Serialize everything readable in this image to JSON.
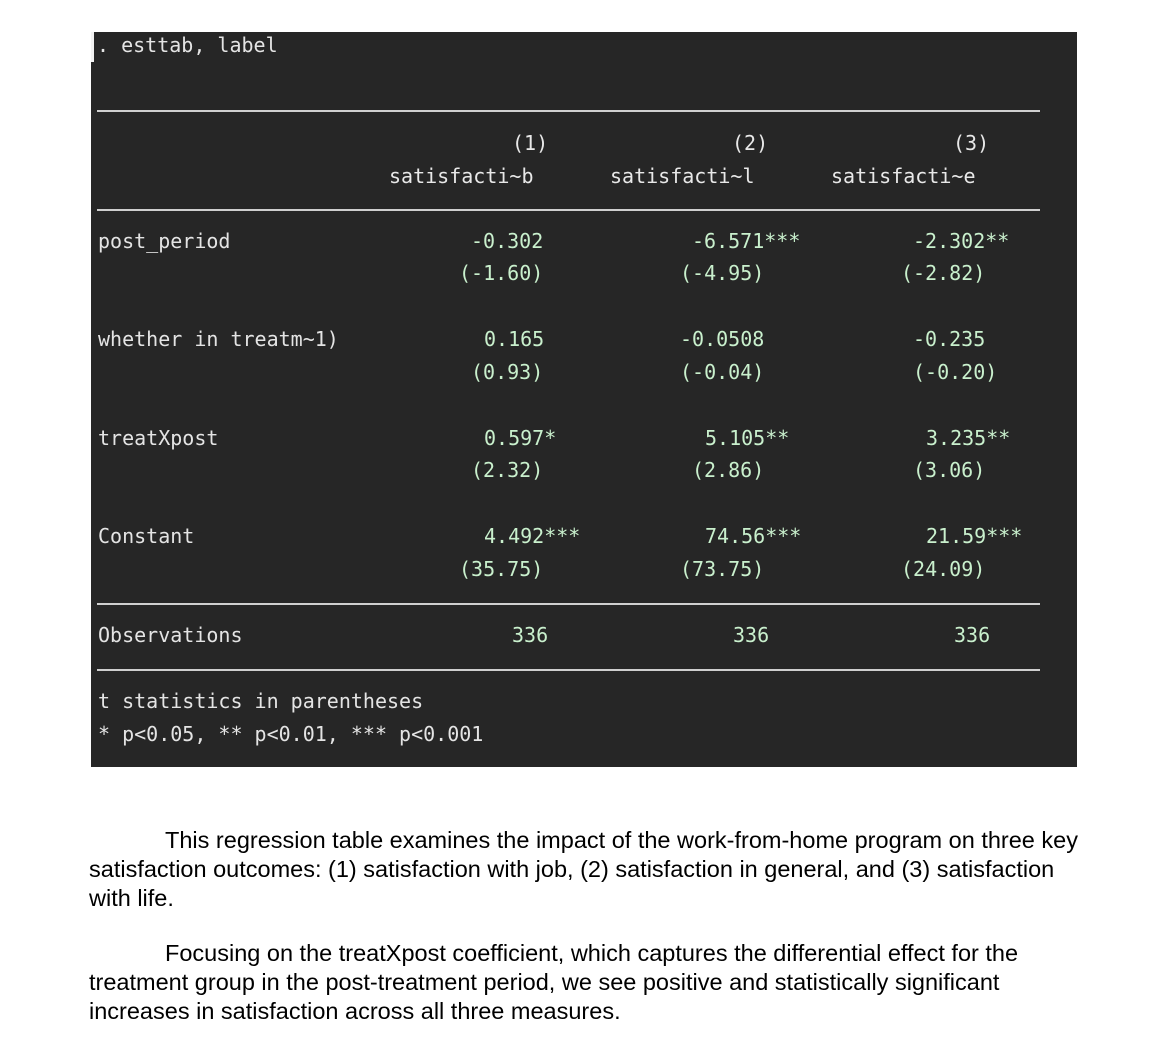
{
  "command": ". esttab, label",
  "table": {
    "column_numbers": [
      "(1)",
      "(2)",
      "(3)"
    ],
    "column_names": [
      "satisfacti~b",
      "satisfacti~l",
      "satisfacti~e"
    ],
    "rows": [
      {
        "label": "post_period",
        "coefs": [
          "-0.302",
          "-6.571***",
          "-2.302**"
        ],
        "tstats": [
          "(-1.60)",
          "(-4.95)",
          "(-2.82)"
        ]
      },
      {
        "label": "whether in treatm~1)",
        "coefs": [
          "0.165",
          "-0.0508",
          "-0.235"
        ],
        "tstats": [
          "(0.93)",
          "(-0.04)",
          "(-0.20)"
        ]
      },
      {
        "label": "treatXpost",
        "coefs": [
          "0.597*",
          "5.105**",
          "3.235**"
        ],
        "tstats": [
          "(2.32)",
          "(2.86)",
          "(3.06)"
        ]
      },
      {
        "label": "Constant",
        "coefs": [
          "4.492***",
          "74.56***",
          "21.59***"
        ],
        "tstats": [
          "(35.75)",
          "(73.75)",
          "(24.09)"
        ]
      }
    ],
    "observations_label": "Observations",
    "observations": [
      "336",
      "336",
      "336"
    ],
    "notes": [
      "t statistics in parentheses",
      "* p<0.05, ** p<0.01, *** p<0.001"
    ]
  },
  "paragraphs": [
    "This regression table examines the impact of the work-from-home program on three key satisfaction outcomes: (1) satisfaction with job, (2) satisfaction in general, and (3) satisfaction with life.",
    "Focusing on the treatXpost coefficient, which captures the differential effect for the treatment group in the post-treatment period, we see positive and statistically significant increases in satisfaction across all three measures."
  ]
}
